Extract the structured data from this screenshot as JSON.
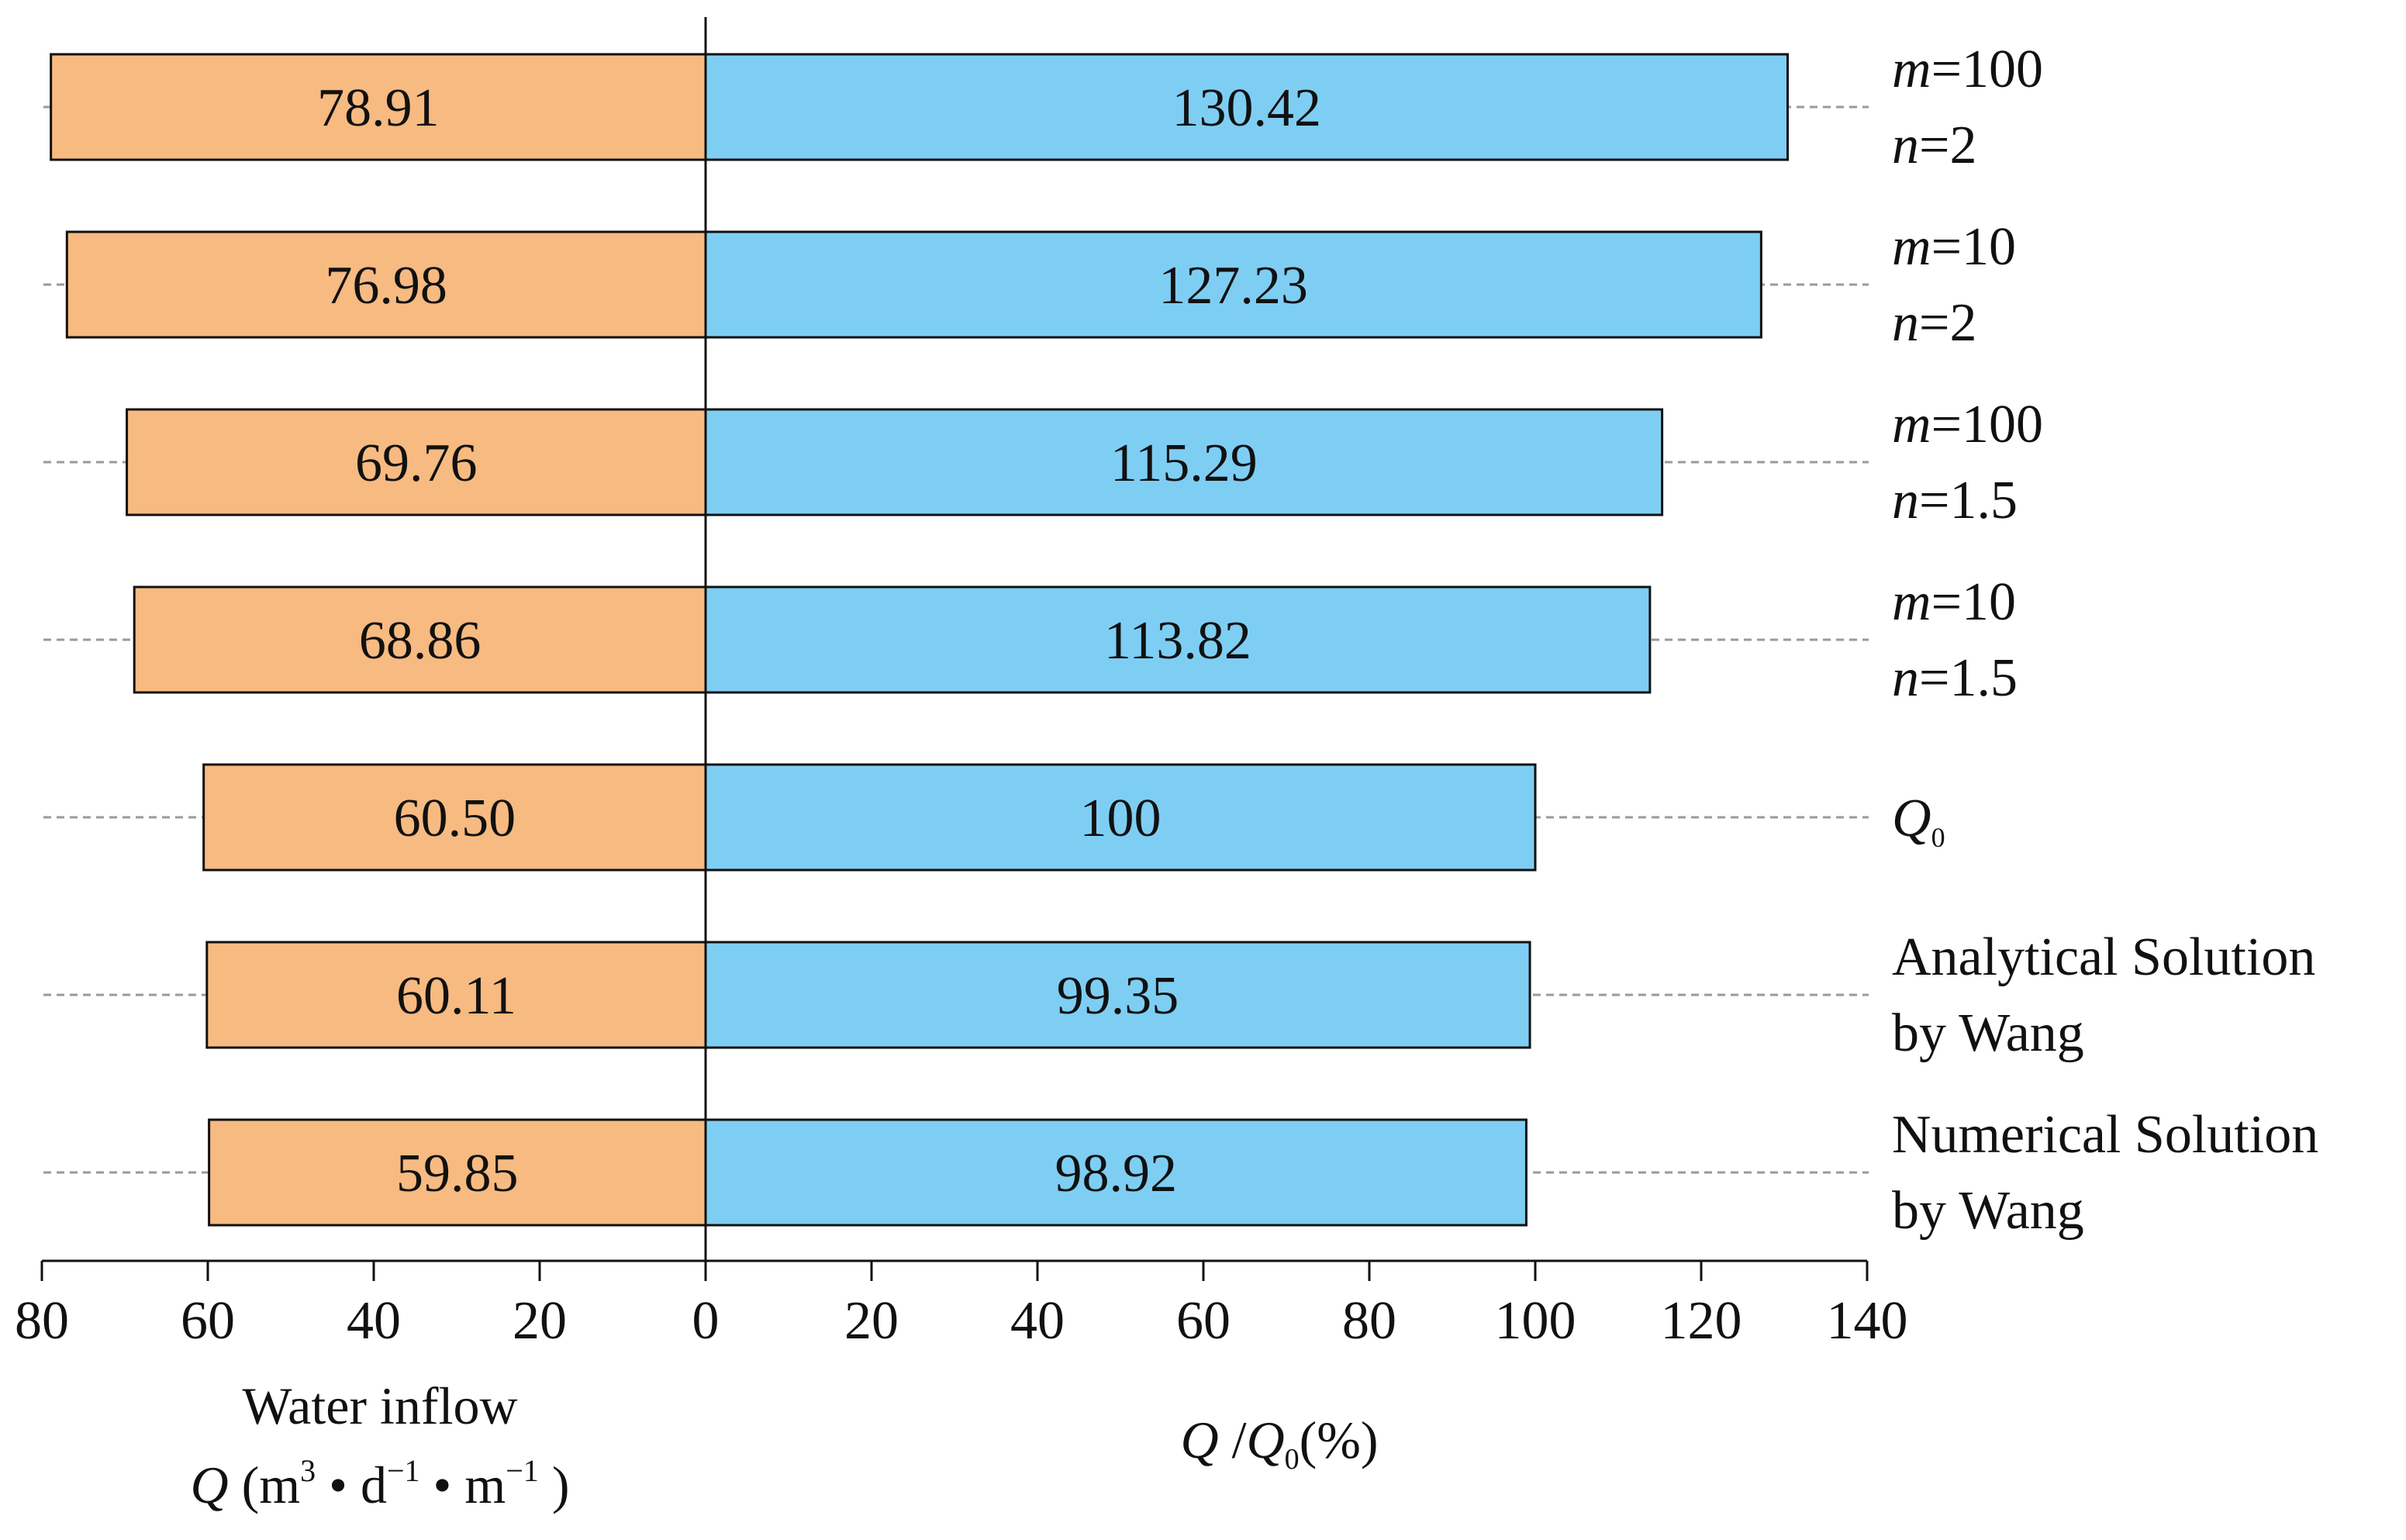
{
  "chart_data": {
    "type": "bar",
    "orientation": "horizontal-diverging",
    "categories": [
      [
        "m=100",
        "n=2"
      ],
      [
        "m=10",
        "n=2"
      ],
      [
        "m=100",
        "n=1.5"
      ],
      [
        "m=10",
        "n=1.5"
      ],
      [
        "Q0"
      ],
      [
        "Analytical Solution",
        "by Wang"
      ],
      [
        "Numerical Solution",
        "by Wang"
      ]
    ],
    "series": [
      {
        "name": "Water inflow Q",
        "direction": "left",
        "color": "#F7BA81",
        "values": [
          78.91,
          76.98,
          69.76,
          68.86,
          60.5,
          60.11,
          59.85
        ],
        "labels": [
          "78.91",
          "76.98",
          "69.76",
          "68.86",
          "60.50",
          "60.11",
          "59.85"
        ]
      },
      {
        "name": "Q/Q0(%)",
        "direction": "right",
        "color": "#7ECEF4",
        "values": [
          130.42,
          127.23,
          115.29,
          113.82,
          100,
          99.35,
          98.92
        ],
        "labels": [
          "130.42",
          "127.23",
          "115.29",
          "113.82",
          "100",
          "99.35",
          "98.92"
        ]
      }
    ],
    "left_axis": {
      "range": [
        80,
        0
      ],
      "ticks": [
        80,
        60,
        40,
        20,
        0
      ],
      "label_line1": "Water inflow",
      "label_line2": {
        "q": "Q",
        "open": " (m",
        "sup1": "3",
        "mid1": " • d",
        "sup2": "−1",
        "mid2": " • m",
        "sup3": "−1",
        "close": " )"
      }
    },
    "right_axis": {
      "range": [
        0,
        140
      ],
      "ticks": [
        20,
        40,
        60,
        80,
        100,
        120,
        140
      ],
      "label": {
        "q": "Q",
        "slash": " /",
        "q0": "Q",
        "q0_sub": "0",
        "rest": "(%)"
      }
    },
    "q0_label": {
      "q": "Q",
      "sub": "0"
    },
    "grid": "dashed guide lines per row",
    "legend": "none"
  }
}
